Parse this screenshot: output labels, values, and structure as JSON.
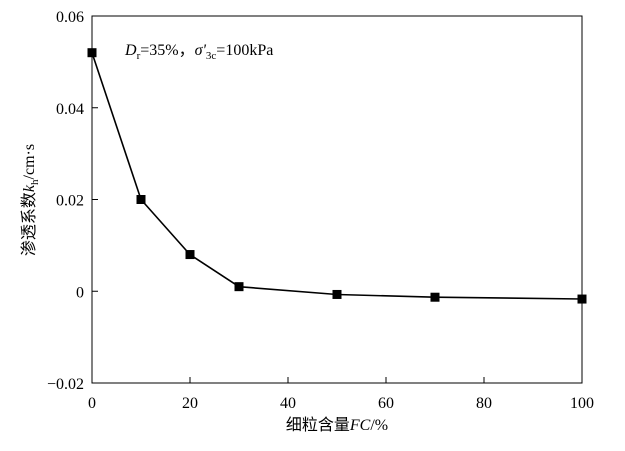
{
  "chart_data": {
    "type": "line",
    "xlabel": "细粒含量FC/%",
    "xlabel_parts": {
      "prefix": "细粒含量",
      "italic": "FC",
      "suffix": "/%"
    },
    "ylabel": "渗透系数kh/cm·s",
    "ylabel_parts": {
      "prefix": "渗透系数",
      "italic": "k",
      "sub": "h",
      "suffix": "/cm·s"
    },
    "annotation": "Dr=35%，σ'3c=100kPa",
    "annotation_parts": {
      "d": "D",
      "d_sub": "r",
      "d_rest": "=35%，",
      "sigma": "σ",
      "sigma_prime": "'",
      "sigma_sub": "3c",
      "sigma_rest": "=100kPa"
    },
    "xlim": [
      0,
      100
    ],
    "ylim": [
      -0.02,
      0.06
    ],
    "x_ticks": [
      0,
      20,
      40,
      60,
      80,
      100
    ],
    "x_tick_labels": [
      "0",
      "20",
      "40",
      "60",
      "80",
      "100"
    ],
    "y_ticks": [
      -0.02,
      0,
      0.02,
      0.04,
      0.06
    ],
    "y_tick_labels": [
      "−0.02",
      "0",
      "0.02",
      "0.04",
      "0.06"
    ],
    "grid": false,
    "series": [
      {
        "marker": "square",
        "color": "#000000",
        "x": [
          0,
          10,
          20,
          30,
          50,
          70,
          100
        ],
        "y": [
          0.052,
          0.02,
          0.008,
          0.001,
          -0.0007,
          -0.0013,
          -0.0017
        ]
      }
    ]
  }
}
